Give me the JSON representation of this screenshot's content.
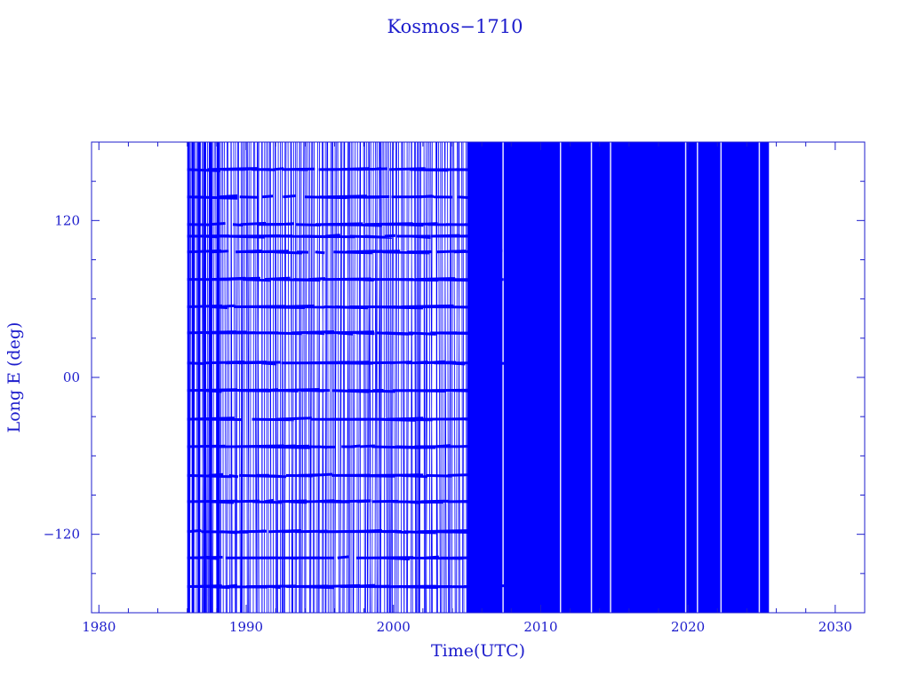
{
  "chart_data": {
    "type": "scatter",
    "title": "Kosmos−1710",
    "xlabel": "Time(UTC)",
    "ylabel": "Long E (deg)",
    "xlim": [
      1979.5,
      2032
    ],
    "ylim": [
      -180,
      180
    ],
    "xticks": [
      1980,
      1990,
      2000,
      2010,
      2020,
      2030
    ],
    "xtick_labels": [
      "1980",
      "1990",
      "2000",
      "2010",
      "2020",
      "2030"
    ],
    "yticks": [
      120,
      0,
      -120
    ],
    "ytick_labels": [
      "120",
      "00",
      "−120"
    ],
    "grid": false,
    "color": "#0000ff",
    "frame_color": "#1c1ccc",
    "series": [
      {
        "data_start": 1986.0,
        "data_end": 2025.5,
        "dense_band_start": 2005.0,
        "dense_band_end": 2025.5,
        "drift_levels_1986_2005": [
          159,
          138,
          117,
          108,
          96,
          75,
          54,
          34,
          11,
          -10,
          -32,
          -53,
          -75,
          -95,
          -118,
          -138,
          -160
        ]
      }
    ]
  }
}
